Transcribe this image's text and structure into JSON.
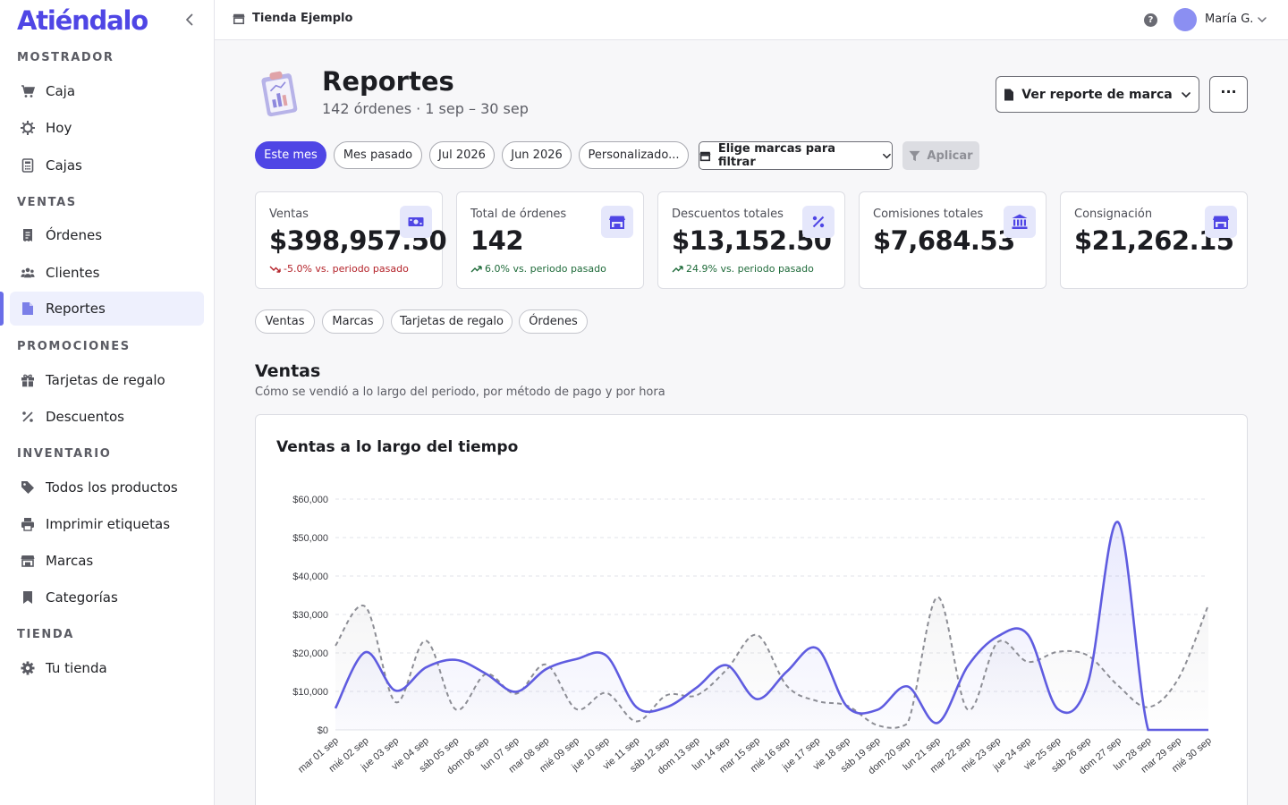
{
  "app": {
    "brand": "Atiéndalo"
  },
  "sidebar": {
    "sections": [
      {
        "title": "MOSTRADOR",
        "items": [
          {
            "label": "Caja",
            "icon": "cart-icon"
          },
          {
            "label": "Hoy",
            "icon": "sun-icon"
          },
          {
            "label": "Cajas",
            "icon": "calculator-icon"
          }
        ]
      },
      {
        "title": "VENTAS",
        "items": [
          {
            "label": "Órdenes",
            "icon": "receipt-icon"
          },
          {
            "label": "Clientes",
            "icon": "users-icon"
          },
          {
            "label": "Reportes",
            "icon": "document-icon",
            "active": true
          }
        ]
      },
      {
        "title": "PROMOCIONES",
        "items": [
          {
            "label": "Tarjetas de regalo",
            "icon": "gift-icon"
          },
          {
            "label": "Descuentos",
            "icon": "percent-icon"
          }
        ]
      },
      {
        "title": "INVENTARIO",
        "items": [
          {
            "label": "Todos los productos",
            "icon": "tag-icon"
          },
          {
            "label": "Imprimir etiquetas",
            "icon": "printer-icon"
          },
          {
            "label": "Marcas",
            "icon": "store-icon"
          },
          {
            "label": "Categorías",
            "icon": "bookmark-icon"
          }
        ]
      },
      {
        "title": "TIENDA",
        "items": [
          {
            "label": "Tu tienda",
            "icon": "gear-icon"
          }
        ]
      }
    ]
  },
  "topbar": {
    "store_name": "Tienda Ejemplo",
    "help": "?",
    "user_name": "María G."
  },
  "header": {
    "title": "Reportes",
    "subtitle": "142 órdenes · 1 sep – 30 sep",
    "brand_report_button": "Ver reporte de marca",
    "more_button": "···"
  },
  "filters": {
    "periods": [
      {
        "label": "Este mes",
        "active": true
      },
      {
        "label": "Mes pasado"
      },
      {
        "label": "Jul 2026"
      },
      {
        "label": "Jun 2026"
      },
      {
        "label": "Personalizado..."
      }
    ],
    "brand_filter": "Elige marcas para filtrar",
    "apply": "Aplicar"
  },
  "kpis": [
    {
      "label": "Ventas",
      "value": "$398,957.50",
      "delta": "-5.0% vs. periodo pasado",
      "trend": "down",
      "icon": "cash-icon"
    },
    {
      "label": "Total de órdenes",
      "value": "142",
      "delta": "6.0% vs. periodo pasado",
      "trend": "up",
      "icon": "store-icon"
    },
    {
      "label": "Descuentos totales",
      "value": "$13,152.50",
      "delta": "24.9% vs. periodo pasado",
      "trend": "up",
      "icon": "percent-icon"
    },
    {
      "label": "Comisiones totales",
      "value": "$7,684.53",
      "delta": "",
      "trend": "",
      "icon": "bank-icon"
    },
    {
      "label": "Consignación",
      "value": "$21,262.15",
      "delta": "",
      "trend": "",
      "icon": "store-icon"
    }
  ],
  "report_tabs": [
    "Ventas",
    "Marcas",
    "Tarjetas de regalo",
    "Órdenes"
  ],
  "section": {
    "title": "Ventas",
    "subtitle": "Cómo se vendió a lo largo del periodo, por método de pago y por hora"
  },
  "colors": {
    "accent": "#4f46e5",
    "line_current": "#5f5ce0",
    "line_previous": "#8c8d94",
    "negative": "#b4232a",
    "positive": "#1f6b3a"
  },
  "chart_data": {
    "type": "line",
    "title": "Ventas a lo largo del tiempo",
    "x": [
      "mar 01 sep",
      "mié 02 sep",
      "jue 03 sep",
      "vie 04 sep",
      "sáb 05 sep",
      "dom 06 sep",
      "lun 07 sep",
      "mar 08 sep",
      "mié 09 sep",
      "jue 10 sep",
      "vie 11 sep",
      "sáb 12 sep",
      "dom 13 sep",
      "lun 14 sep",
      "mar 15 sep",
      "mié 16 sep",
      "jue 17 sep",
      "vie 18 sep",
      "sáb 19 sep",
      "dom 20 sep",
      "lun 21 sep",
      "mar 22 sep",
      "mié 23 sep",
      "jue 24 sep",
      "vie 25 sep",
      "sáb 26 sep",
      "dom 27 sep",
      "lun 28 sep",
      "mar 29 sep",
      "mié 30 sep"
    ],
    "ylim": [
      0,
      60000
    ],
    "yticks": [
      0,
      10000,
      20000,
      30000,
      40000,
      50000,
      60000
    ],
    "ytick_labels": [
      "$0",
      "$10,000",
      "$20,000",
      "$30,000",
      "$40,000",
      "$50,000",
      "$60,000"
    ],
    "series": [
      {
        "style": "solid",
        "values": [
          5600,
          20200,
          10200,
          16200,
          18200,
          14600,
          9900,
          15800,
          18400,
          19300,
          5900,
          5900,
          11000,
          16800,
          8000,
          15200,
          21200,
          6000,
          5200,
          11300,
          1800,
          16500,
          24300,
          24800,
          5400,
          12300,
          54000,
          0,
          0,
          0
        ]
      },
      {
        "style": "dashed",
        "values": [
          21900,
          32000,
          7200,
          23200,
          5300,
          14500,
          9400,
          17000,
          5400,
          9600,
          2200,
          9000,
          9000,
          15700,
          24700,
          11400,
          7500,
          6300,
          1200,
          1600,
          34500,
          5300,
          22800,
          17700,
          20300,
          19300,
          11500,
          5900,
          13300,
          32500
        ]
      }
    ],
    "grid": true,
    "legend": "none"
  }
}
